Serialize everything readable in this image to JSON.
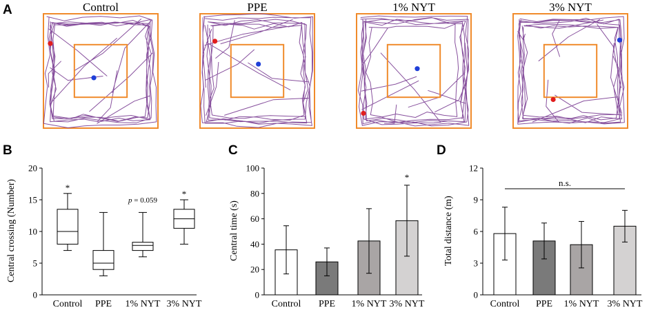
{
  "panel_letters": {
    "a": "A",
    "b": "B",
    "c": "C",
    "d": "D"
  },
  "colors": {
    "arena": "#f08a2a",
    "track": "#7a3d92",
    "start_dot": "#e01e1e",
    "end_dot": "#1f3fd8",
    "bar_control": "#ffffff",
    "bar_ppe": "#7a7a7a",
    "bar_1nyt": "#a9a5a5",
    "bar_3nyt": "#d4d2d2"
  },
  "arenas": [
    {
      "title": "Control",
      "start": [
        0.06,
        0.26
      ],
      "end": [
        0.44,
        0.56
      ]
    },
    {
      "title": "PPE",
      "start": [
        0.13,
        0.24
      ],
      "end": [
        0.51,
        0.44
      ]
    },
    {
      "title": "1% NYT",
      "start": [
        0.06,
        0.87
      ],
      "end": [
        0.53,
        0.48
      ]
    },
    {
      "title": "3% NYT",
      "start": [
        0.35,
        0.75
      ],
      "end": [
        0.93,
        0.23
      ]
    }
  ],
  "chart_data": [
    {
      "type": "box",
      "panel": "B",
      "categories": [
        "Control",
        "PPE",
        "1% NYT",
        "3% NYT"
      ],
      "ylabel": "Central crossing (Number)",
      "ylim": [
        0,
        20
      ],
      "yticks": [
        0,
        5,
        10,
        15,
        20
      ],
      "ytick_labels": [
        "0",
        "5",
        "10",
        "15",
        "20"
      ],
      "boxes": [
        {
          "min": 7,
          "q1": 8,
          "median": 10,
          "q3": 13.5,
          "max": 16
        },
        {
          "min": 3,
          "q1": 4,
          "median": 5,
          "q3": 7,
          "max": 13
        },
        {
          "min": 6,
          "q1": 7,
          "median": 7.8,
          "q3": 8.3,
          "max": 13
        },
        {
          "min": 8,
          "q1": 10.5,
          "median": 12,
          "q3": 13.5,
          "max": 15
        }
      ],
      "annotations": [
        {
          "category": "Control",
          "text": "*"
        },
        {
          "category": "3% NYT",
          "text": "*"
        },
        {
          "category": "1% NYT",
          "italic": "p",
          "text": " = 0.059"
        }
      ]
    },
    {
      "type": "bar",
      "panel": "C",
      "categories": [
        "Control",
        "PPE",
        "1% NYT",
        "3% NYT"
      ],
      "values": [
        35.5,
        26,
        42.5,
        58.5
      ],
      "errors": [
        19,
        11,
        25.5,
        28
      ],
      "ylabel": "Central time (s)",
      "ylim": [
        0,
        100
      ],
      "yticks": [
        0,
        20,
        40,
        60,
        80,
        100
      ],
      "ytick_labels": [
        "0",
        "20",
        "40",
        "60",
        "80",
        "100"
      ],
      "annotations": [
        {
          "category": "3% NYT",
          "text": "*"
        }
      ]
    },
    {
      "type": "bar",
      "panel": "D",
      "categories": [
        "Control",
        "PPE",
        "1% NYT",
        "3% NYT"
      ],
      "values": [
        5.8,
        5.1,
        4.75,
        6.5
      ],
      "errors": [
        2.5,
        1.7,
        2.2,
        1.5
      ],
      "ylabel": "Total distance (m)",
      "ylim": [
        0,
        12
      ],
      "yticks": [
        0,
        3,
        6,
        9,
        12
      ],
      "ytick_labels": [
        "0",
        "3",
        "6",
        "9",
        "12"
      ],
      "annotations": [
        {
          "text": "n.s."
        }
      ]
    }
  ]
}
